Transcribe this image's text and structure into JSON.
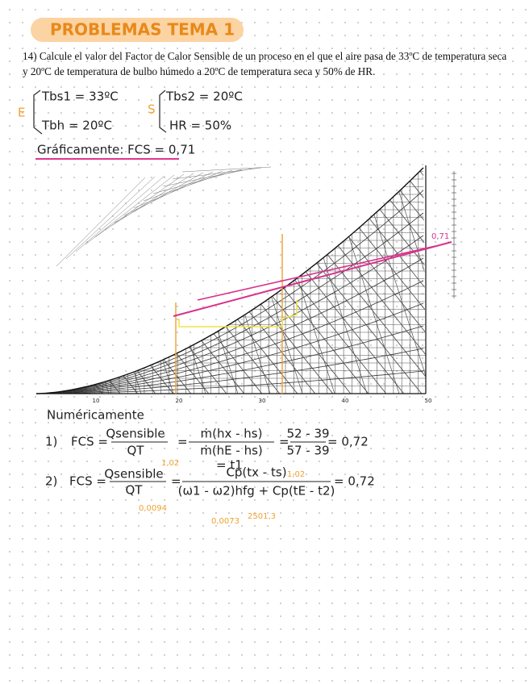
{
  "header": {
    "title": "PROBLEMAS TEMA 1"
  },
  "problem": "14) Calcule el valor del Factor de Calor Sensible de un proceso en el que el aire pasa de 33ºC de temperatura seca y 20ºC de temperatura de bulbo húmedo a 20ºC de temperatura seca y 50% de HR.",
  "given": {
    "inlet_mark": "E",
    "inlet": [
      "Tbs1 = 33ºC",
      "Tbh = 20ºC"
    ],
    "outlet_mark": "S",
    "outlet": [
      "Tbs2 = 20ºC",
      "HR = 50%"
    ]
  },
  "graphical": {
    "text": "Gráficamente: FCS = 0,71",
    "chart_label": "0,71",
    "x_labels": [
      "10",
      "20",
      "30",
      "40",
      "50"
    ]
  },
  "numerical": {
    "title": "Numéricamente",
    "eq1": {
      "number": "1)",
      "lhs": "FCS =",
      "sep": "=",
      "num1": "Qsensible",
      "den1": "QT",
      "num2": "ṁ(hx - hs)",
      "den2": "ṁ(hE - hs)",
      "num3": "52 - 39",
      "den3": "57 - 39",
      "result": "= 0,72"
    },
    "eq2": {
      "number": "2)",
      "lhs": "FCS =",
      "sep": "=",
      "num1": "Qsensible",
      "den1": "QT",
      "num2": "Cp(tx - ts)",
      "den2": "(ω1 - ω2)hfg + Cp(tE - t2)",
      "result": "= 0,72",
      "notes": [
        "1,02",
        "= t1",
        "1,02",
        "0,0094",
        "0,0073",
        "2501,3"
      ]
    }
  }
}
